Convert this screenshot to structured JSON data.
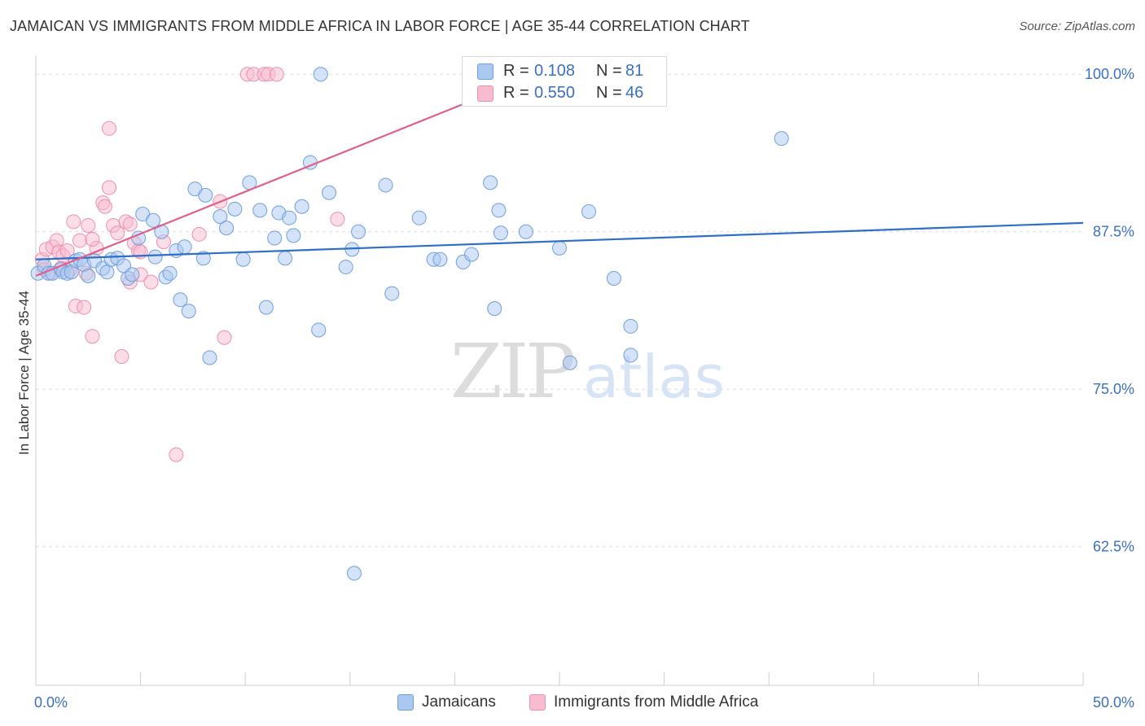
{
  "title": "JAMAICAN VS IMMIGRANTS FROM MIDDLE AFRICA IN LABOR FORCE | AGE 35-44 CORRELATION CHART",
  "source": "Source: ZipAtlas.com",
  "watermark": {
    "zip": "ZIP",
    "atlas": "atlas"
  },
  "colors": {
    "blue_fill": "#aac8f0",
    "blue_stroke": "#6f9fdc",
    "blue_line": "#2f6fc8",
    "pink_fill": "#f7bcd0",
    "pink_stroke": "#ee8fb0",
    "pink_line": "#e0608a",
    "tick_label": "#3a6fc4",
    "grid": "#dddddd"
  },
  "legend_stats": [
    {
      "r_label": "R = ",
      "r_value": "0.108",
      "n_label": "N = ",
      "n_value": "81"
    },
    {
      "r_label": "R = ",
      "r_value": "0.550",
      "n_label": "N = ",
      "n_value": "46"
    }
  ],
  "chart_data": {
    "type": "scatter",
    "title": "JAMAICAN VS IMMIGRANTS FROM MIDDLE AFRICA IN LABOR FORCE | AGE 35-44 CORRELATION CHART",
    "xlabel": "",
    "ylabel": "In Labor Force | Age 35-44",
    "xlim": [
      0,
      50
    ],
    "ylim": [
      51.5,
      101.5
    ],
    "x_tick_labels": [
      {
        "value": 0,
        "label": "0.0%"
      },
      {
        "value": 50,
        "label": "50.0%"
      }
    ],
    "x_minor_ticks": [
      0,
      5,
      10,
      15,
      20,
      25,
      30,
      35,
      40,
      45,
      50
    ],
    "y_ticks": [
      {
        "value": 100,
        "label": "100.0%"
      },
      {
        "value": 87.5,
        "label": "87.5%"
      },
      {
        "value": 75,
        "label": "75.0%"
      },
      {
        "value": 62.5,
        "label": "62.5%"
      }
    ],
    "grid": true,
    "legend_position": "bottom",
    "series": [
      {
        "name": "Jamaicans",
        "color": "blue",
        "trend": {
          "x": [
            0,
            50
          ],
          "y": [
            85.3,
            88.2
          ]
        },
        "points": [
          [
            0.1,
            84.2
          ],
          [
            0.4,
            84.8
          ],
          [
            0.6,
            84.2
          ],
          [
            0.8,
            84.2
          ],
          [
            1.2,
            84.5
          ],
          [
            1.3,
            84.3
          ],
          [
            1.5,
            84.2
          ],
          [
            1.7,
            84.3
          ],
          [
            1.9,
            85.2
          ],
          [
            2.1,
            85.3
          ],
          [
            2.3,
            84.9
          ],
          [
            2.5,
            84.0
          ],
          [
            2.8,
            85.2
          ],
          [
            3.2,
            84.6
          ],
          [
            3.4,
            84.3
          ],
          [
            3.6,
            85.3
          ],
          [
            3.9,
            85.4
          ],
          [
            4.2,
            84.8
          ],
          [
            4.4,
            83.8
          ],
          [
            4.6,
            84.1
          ],
          [
            4.9,
            87.0
          ],
          [
            5.1,
            88.9
          ],
          [
            5.6,
            88.4
          ],
          [
            5.7,
            85.5
          ],
          [
            6.0,
            87.5
          ],
          [
            6.2,
            83.9
          ],
          [
            6.4,
            84.2
          ],
          [
            6.7,
            86.0
          ],
          [
            6.9,
            82.1
          ],
          [
            7.1,
            86.3
          ],
          [
            7.3,
            81.2
          ],
          [
            7.6,
            90.9
          ],
          [
            8.0,
            85.4
          ],
          [
            8.1,
            90.4
          ],
          [
            8.3,
            77.5
          ],
          [
            8.8,
            88.7
          ],
          [
            9.1,
            87.8
          ],
          [
            9.5,
            89.3
          ],
          [
            9.9,
            85.3
          ],
          [
            10.2,
            91.4
          ],
          [
            10.7,
            89.2
          ],
          [
            11.0,
            81.5
          ],
          [
            11.4,
            87.0
          ],
          [
            11.6,
            89.0
          ],
          [
            11.9,
            85.4
          ],
          [
            12.1,
            88.6
          ],
          [
            12.3,
            87.2
          ],
          [
            12.7,
            89.5
          ],
          [
            13.1,
            93.0
          ],
          [
            13.5,
            79.7
          ],
          [
            13.6,
            100.0
          ],
          [
            14.0,
            90.6
          ],
          [
            14.8,
            84.7
          ],
          [
            15.1,
            86.1
          ],
          [
            15.2,
            60.4
          ],
          [
            15.4,
            87.5
          ],
          [
            16.7,
            91.2
          ],
          [
            17.0,
            82.6
          ],
          [
            18.3,
            88.6
          ],
          [
            19.0,
            85.3
          ],
          [
            19.3,
            85.3
          ],
          [
            20.4,
            85.1
          ],
          [
            20.8,
            85.7
          ],
          [
            21.7,
            91.4
          ],
          [
            21.9,
            81.4
          ],
          [
            22.1,
            89.2
          ],
          [
            22.2,
            87.4
          ],
          [
            23.4,
            87.5
          ],
          [
            25.0,
            86.2
          ],
          [
            25.5,
            77.1
          ],
          [
            26.4,
            89.1
          ],
          [
            26.7,
            100.0
          ],
          [
            26.9,
            100.0
          ],
          [
            27.2,
            100.0
          ],
          [
            27.5,
            100.0
          ],
          [
            27.7,
            100.0
          ],
          [
            28.1,
            100.0
          ],
          [
            28.4,
            80.0
          ],
          [
            27.6,
            83.8
          ],
          [
            28.4,
            77.7
          ],
          [
            35.6,
            94.9
          ]
        ]
      },
      {
        "name": "Immigrants from Middle Africa",
        "color": "pink",
        "trend": {
          "x": [
            0,
            24.7
          ],
          "y": [
            84.0,
            100.5
          ]
        },
        "points": [
          [
            0.3,
            85.3
          ],
          [
            0.4,
            84.5
          ],
          [
            0.5,
            86.1
          ],
          [
            0.7,
            84.2
          ],
          [
            0.8,
            86.3
          ],
          [
            1.0,
            86.8
          ],
          [
            1.1,
            85.9
          ],
          [
            1.3,
            85.6
          ],
          [
            1.5,
            86.0
          ],
          [
            1.6,
            84.4
          ],
          [
            1.8,
            88.3
          ],
          [
            1.9,
            81.6
          ],
          [
            2.1,
            86.8
          ],
          [
            2.3,
            81.5
          ],
          [
            2.4,
            84.2
          ],
          [
            2.5,
            88.0
          ],
          [
            2.7,
            79.2
          ],
          [
            2.9,
            86.2
          ],
          [
            3.2,
            89.8
          ],
          [
            3.3,
            89.5
          ],
          [
            3.5,
            91.0
          ],
          [
            3.5,
            95.7
          ],
          [
            3.7,
            88.0
          ],
          [
            3.9,
            87.4
          ],
          [
            4.1,
            77.6
          ],
          [
            4.3,
            88.3
          ],
          [
            4.5,
            88.1
          ],
          [
            4.7,
            86.6
          ],
          [
            4.9,
            86.0
          ],
          [
            5.0,
            84.1
          ],
          [
            5.0,
            85.9
          ],
          [
            5.5,
            83.5
          ],
          [
            6.1,
            86.7
          ],
          [
            6.7,
            69.8
          ],
          [
            7.8,
            87.3
          ],
          [
            8.8,
            89.9
          ],
          [
            9.0,
            79.1
          ],
          [
            10.1,
            100.0
          ],
          [
            10.4,
            100.0
          ],
          [
            10.9,
            100.0
          ],
          [
            11.1,
            100.0
          ],
          [
            11.5,
            100.0
          ],
          [
            14.4,
            88.5
          ],
          [
            4.5,
            83.5
          ],
          [
            2.7,
            86.9
          ],
          [
            1.2,
            84.6
          ]
        ]
      }
    ]
  }
}
